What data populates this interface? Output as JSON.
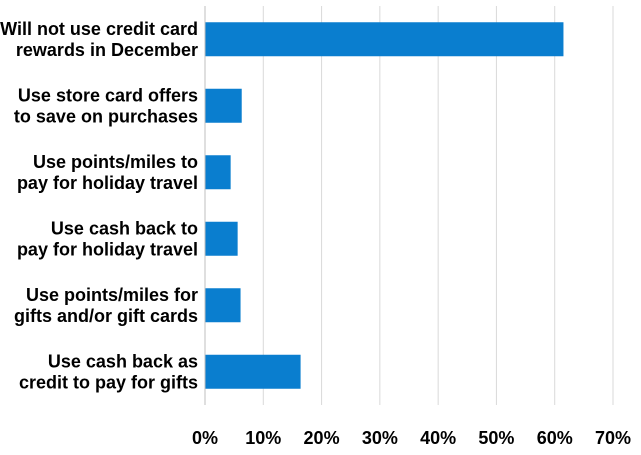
{
  "chart_data": {
    "type": "bar",
    "orientation": "horizontal",
    "categories": [
      [
        "Will not use credit card",
        "rewards in December"
      ],
      [
        "Use store card offers",
        "to save on purchases"
      ],
      [
        "Use points/miles to",
        "pay for holiday travel"
      ],
      [
        "Use cash back to",
        "pay for holiday travel"
      ],
      [
        "Use points/miles for",
        "gifts and/or gift cards"
      ],
      [
        "Use cash back as",
        "credit to pay for gifts"
      ]
    ],
    "values": [
      61.5,
      6.3,
      4.4,
      5.6,
      6.1,
      16.4
    ],
    "xlim": [
      0,
      70
    ],
    "xticks": [
      0,
      10,
      20,
      30,
      40,
      50,
      60,
      70
    ],
    "xtick_labels": [
      "0%",
      "10%",
      "20%",
      "30%",
      "40%",
      "50%",
      "60%",
      "70%"
    ],
    "title": "",
    "xlabel": "",
    "ylabel": "",
    "grid": true,
    "legend": false,
    "bar_color": "#0a7ecf"
  }
}
